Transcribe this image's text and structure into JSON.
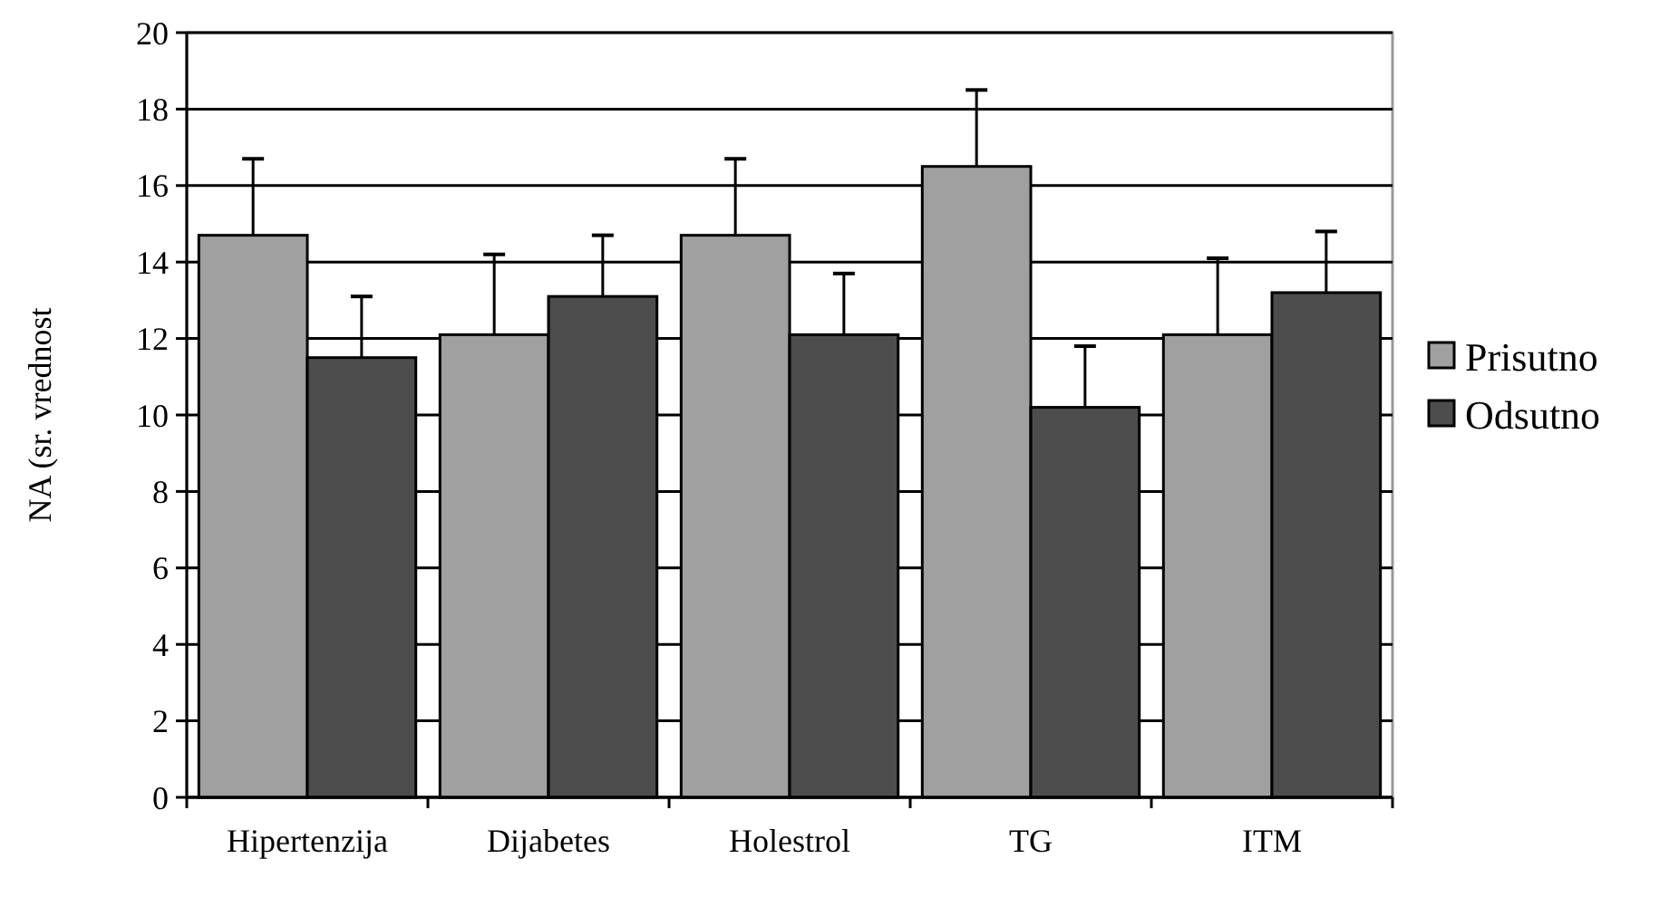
{
  "chart_data": {
    "type": "bar",
    "ylabel": "NA (sr. vrednost",
    "categories": [
      "Hipertenzija",
      "Dijabetes",
      "Holestrol",
      "TG",
      "ITM"
    ],
    "series": [
      {
        "name": "Prisutno",
        "color": "#a0a0a0",
        "values": [
          14.7,
          12.1,
          14.7,
          16.5,
          12.1
        ],
        "errors": [
          [
            14.7,
            16.7
          ],
          [
            12.1,
            14.2
          ],
          [
            14.7,
            16.7
          ],
          [
            16.5,
            18.5
          ],
          [
            12.1,
            14.1
          ]
        ]
      },
      {
        "name": "Odsutno",
        "color": "#4d4d4d",
        "values": [
          11.5,
          13.1,
          12.1,
          10.2,
          13.2
        ],
        "errors": [
          [
            11.5,
            13.1
          ],
          [
            13.1,
            14.7
          ],
          [
            12.1,
            13.7
          ],
          [
            10.2,
            11.8
          ],
          [
            13.2,
            14.8
          ]
        ]
      }
    ],
    "ylim": [
      0,
      20
    ],
    "yticks": [
      0,
      2,
      4,
      6,
      8,
      10,
      12,
      14,
      16,
      18,
      20
    ],
    "grid": "y",
    "legend": "right"
  }
}
